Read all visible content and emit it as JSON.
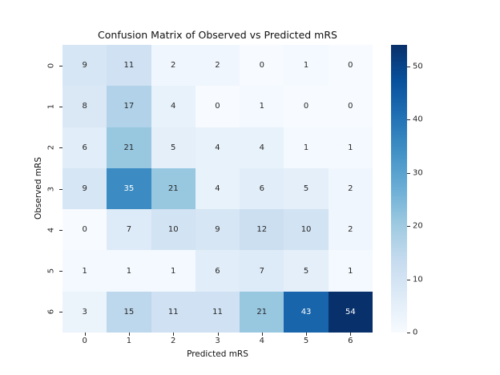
{
  "figure": {
    "background_color": "#ffffff",
    "text_color": "#262626"
  },
  "chart_data": {
    "type": "heatmap",
    "title": "Confusion Matrix of Observed vs Predicted mRS",
    "xlabel": "Predicted mRS",
    "ylabel": "Observed mRS",
    "x_ticklabels": [
      "0",
      "1",
      "2",
      "3",
      "4",
      "5",
      "6"
    ],
    "y_ticklabels": [
      "0",
      "1",
      "2",
      "3",
      "4",
      "5",
      "6"
    ],
    "matrix": [
      [
        9,
        11,
        2,
        2,
        0,
        1,
        0
      ],
      [
        8,
        17,
        4,
        0,
        1,
        0,
        0
      ],
      [
        6,
        21,
        5,
        4,
        4,
        1,
        1
      ],
      [
        9,
        35,
        21,
        4,
        6,
        5,
        2
      ],
      [
        0,
        7,
        10,
        9,
        12,
        10,
        2
      ],
      [
        1,
        1,
        1,
        6,
        7,
        5,
        1
      ],
      [
        3,
        15,
        11,
        11,
        21,
        43,
        54
      ]
    ],
    "vmin": 0,
    "vmax": 54,
    "colormap_name": "Blues",
    "colormap_stops": [
      "#f7fbff",
      "#deebf7",
      "#c6dbef",
      "#9ecae1",
      "#6baed6",
      "#4292c6",
      "#2171b5",
      "#08519c",
      "#08306b"
    ],
    "annotation_dark_color": "#262626",
    "annotation_light_color": "#ffffff",
    "colorbar_ticks": [
      "0",
      "10",
      "20",
      "30",
      "40",
      "50"
    ],
    "colorbar_position": "right",
    "grid": false,
    "legend": false
  }
}
